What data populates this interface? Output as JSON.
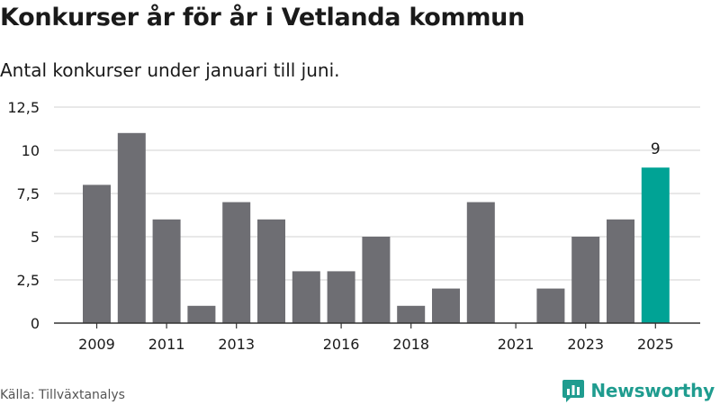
{
  "header": {
    "title": "Konkurser år för år i Vetlanda kommun",
    "subtitle": "Antal konkurser under januari till juni."
  },
  "footer": {
    "source": "Källa: Tillväxtanalys",
    "brand": "Newsworthy",
    "brand_icon": "newsworthy-logo-icon"
  },
  "colors": {
    "bar": "#6e6e73",
    "highlight": "#00a395",
    "grid": "#d9d9d9",
    "axis": "#333333",
    "brand": "#1f9c8f"
  },
  "chart_data": {
    "type": "bar",
    "categories": [
      "2009",
      "2010",
      "2011",
      "2012",
      "2013",
      "2014",
      "2015",
      "2016",
      "2017",
      "2018",
      "2019",
      "2020",
      "2021",
      "2022",
      "2023",
      "2024",
      "2025"
    ],
    "values": [
      8,
      11,
      6,
      1,
      7,
      6,
      3,
      3,
      5,
      1,
      2,
      7,
      0,
      2,
      5,
      6,
      9
    ],
    "x_tick_labels": [
      "2009",
      "2011",
      "2013",
      "2016",
      "2018",
      "2021",
      "2023",
      "2025"
    ],
    "y_ticks": [
      "0",
      "2,5",
      "5",
      "7,5",
      "10",
      "12,5"
    ],
    "ylim": [
      0,
      12.5
    ],
    "highlight_category": "2025",
    "highlight_label": "9",
    "grid": true,
    "legend": "none",
    "xlabel": "",
    "ylabel": ""
  }
}
